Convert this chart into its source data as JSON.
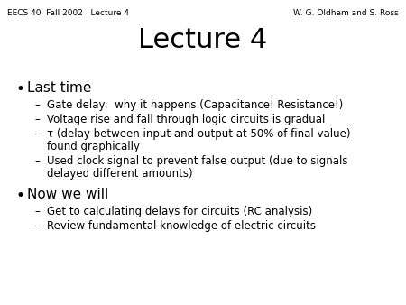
{
  "background_color": "#ffffff",
  "header_left": "EECS 40  Fall 2002   Lecture 4",
  "header_right": "W. G. Oldham and S. Ross",
  "header_fontsize": 6.5,
  "title": "Lecture 4",
  "title_fontsize": 22,
  "bullet1": "Last time",
  "bullet1_fontsize": 11,
  "sub_fontsize": 8.5,
  "bullet2": "Now we will",
  "bullet2_fontsize": 11,
  "sub1_1": "Gate delay:  why it happens (Capacitance! Resistance!)",
  "sub1_2": "Voltage rise and fall through logic circuits is gradual",
  "sub1_3a": "τ (delay between input and output at 50% of final value)",
  "sub1_3b": "found graphically",
  "sub1_4a": "Used clock signal to prevent false output (due to signals",
  "sub1_4b": "delayed different amounts)",
  "sub2_1": "Get to calculating delays for circuits (RC analysis)",
  "sub2_2": "Review fundamental knowledge of electric circuits"
}
